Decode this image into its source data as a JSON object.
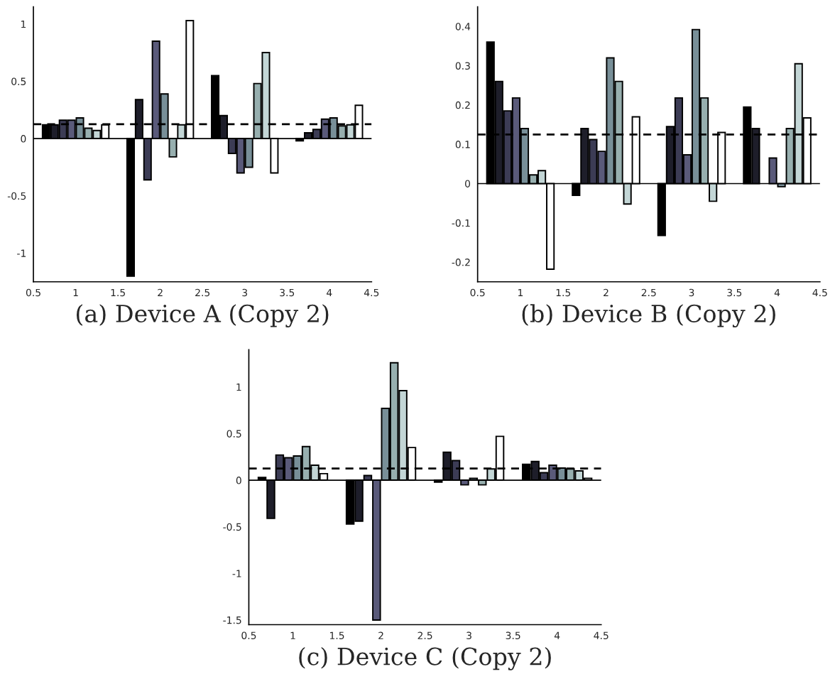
{
  "chart_data": [
    {
      "type": "bar",
      "xlabel": "(a) Device A (Copy 2)",
      "xlim": [
        0.5,
        4.5
      ],
      "xticks": [
        0.5,
        1,
        1.5,
        2,
        2.5,
        3,
        3.5,
        4,
        4.5
      ],
      "ylim": [
        -1.25,
        1.15
      ],
      "yticks": [
        -1,
        -0.5,
        0,
        0.5,
        1
      ],
      "grid": false,
      "legend": false,
      "ref_lines": [
        {
          "axis": "y",
          "value": 0,
          "line_style": "solid",
          "color": "#000000"
        },
        {
          "axis": "y",
          "value": 0.125,
          "line_style": "dashed",
          "color": "#000000"
        }
      ],
      "series": [
        {
          "color": "#000000",
          "x": [
            0.65,
            1.65,
            2.65,
            3.65
          ],
          "values": [
            0.12,
            -1.2,
            0.55,
            -0.02
          ]
        },
        {
          "color": "#1e1e2a",
          "x": [
            0.75,
            1.75,
            2.75,
            3.75
          ],
          "values": [
            0.12,
            0.34,
            0.2,
            0.05
          ]
        },
        {
          "color": "#3c3c55",
          "x": [
            0.85,
            1.85,
            2.85,
            3.85
          ],
          "values": [
            0.16,
            -0.36,
            -0.13,
            0.08
          ]
        },
        {
          "color": "#5a5a7a",
          "x": [
            0.95,
            1.95,
            2.95,
            3.95
          ],
          "values": [
            0.16,
            0.85,
            -0.3,
            0.17
          ]
        },
        {
          "color": "#788f98",
          "x": [
            1.05,
            2.05,
            3.05,
            4.05
          ],
          "values": [
            0.18,
            0.39,
            -0.25,
            0.18
          ]
        },
        {
          "color": "#97afaf",
          "x": [
            1.15,
            2.15,
            3.15,
            4.15
          ],
          "values": [
            0.09,
            -0.16,
            0.48,
            0.11
          ]
        },
        {
          "color": "#c3d6d6",
          "x": [
            1.25,
            2.25,
            3.25,
            4.25
          ],
          "values": [
            0.07,
            0.12,
            0.75,
            0.12
          ]
        },
        {
          "color": "#ffffff",
          "x": [
            1.35,
            2.35,
            3.35,
            4.35
          ],
          "values": [
            0.12,
            1.03,
            -0.3,
            0.29
          ]
        }
      ]
    },
    {
      "type": "bar",
      "xlabel": "(b) Device B (Copy 2)",
      "xlim": [
        0.5,
        4.5
      ],
      "xticks": [
        0.5,
        1,
        1.5,
        2,
        2.5,
        3,
        3.5,
        4,
        4.5
      ],
      "ylim": [
        -0.25,
        0.45
      ],
      "yticks": [
        -0.2,
        -0.1,
        0,
        0.1,
        0.2,
        0.3,
        0.4
      ],
      "grid": false,
      "legend": false,
      "ref_lines": [
        {
          "axis": "y",
          "value": 0,
          "line_style": "solid",
          "color": "#000000"
        },
        {
          "axis": "y",
          "value": 0.125,
          "line_style": "dashed",
          "color": "#000000"
        }
      ],
      "series": [
        {
          "color": "#000000",
          "x": [
            0.65,
            1.65,
            2.65,
            3.65
          ],
          "values": [
            0.36,
            -0.03,
            -0.132,
            0.195
          ]
        },
        {
          "color": "#1e1e2a",
          "x": [
            0.75,
            1.75,
            2.75,
            3.75
          ],
          "values": [
            0.26,
            0.14,
            0.145,
            0.14
          ]
        },
        {
          "color": "#3c3c55",
          "x": [
            0.85,
            1.85,
            2.85
          ],
          "values": [
            0.185,
            0.112,
            0.218
          ]
        },
        {
          "color": "#5a5a7a",
          "x": [
            0.95,
            1.95,
            2.95,
            3.95
          ],
          "values": [
            0.218,
            0.082,
            0.073,
            0.065
          ]
        },
        {
          "color": "#788f98",
          "x": [
            1.05,
            2.05,
            3.05,
            4.05
          ],
          "values": [
            0.14,
            0.32,
            0.392,
            -0.008
          ]
        },
        {
          "color": "#97afaf",
          "x": [
            1.15,
            2.15,
            3.15,
            4.15
          ],
          "values": [
            0.022,
            0.26,
            0.218,
            0.14
          ]
        },
        {
          "color": "#c3d6d6",
          "x": [
            1.25,
            2.25,
            3.25,
            4.25
          ],
          "values": [
            0.033,
            -0.052,
            -0.045,
            0.305
          ]
        },
        {
          "color": "#ffffff",
          "x": [
            1.35,
            2.35,
            3.35,
            4.35
          ],
          "values": [
            -0.218,
            0.17,
            0.13,
            0.167
          ]
        }
      ]
    },
    {
      "type": "bar",
      "xlabel": "(c) Device C (Copy 2)",
      "xlim": [
        0.5,
        4.5
      ],
      "xticks": [
        0.5,
        1,
        1.5,
        2,
        2.5,
        3,
        3.5,
        4,
        4.5
      ],
      "ylim": [
        -1.55,
        1.4
      ],
      "yticks": [
        -1.5,
        -1,
        -0.5,
        0,
        0.5,
        1
      ],
      "grid": false,
      "legend": false,
      "ref_lines": [
        {
          "axis": "y",
          "value": 0,
          "line_style": "solid",
          "color": "#000000"
        },
        {
          "axis": "y",
          "value": 0.125,
          "line_style": "dashed",
          "color": "#000000"
        }
      ],
      "series": [
        {
          "color": "#000000",
          "x": [
            0.65,
            1.65,
            2.65,
            3.65
          ],
          "values": [
            0.03,
            -0.47,
            -0.02,
            0.17
          ]
        },
        {
          "color": "#1e1e2a",
          "x": [
            0.75,
            1.75,
            2.75,
            3.75
          ],
          "values": [
            -0.41,
            -0.44,
            0.3,
            0.2
          ]
        },
        {
          "color": "#3c3c55",
          "x": [
            0.85,
            1.85,
            2.85,
            3.85
          ],
          "values": [
            0.27,
            0.05,
            0.21,
            0.08
          ]
        },
        {
          "color": "#5a5a7a",
          "x": [
            0.95,
            1.95,
            2.95,
            3.95
          ],
          "values": [
            0.24,
            -1.5,
            -0.05,
            0.16
          ]
        },
        {
          "color": "#788f98",
          "x": [
            1.05,
            2.05,
            3.05,
            4.05
          ],
          "values": [
            0.26,
            0.77,
            0.02,
            0.13
          ]
        },
        {
          "color": "#97afaf",
          "x": [
            1.15,
            2.15,
            3.15,
            4.15
          ],
          "values": [
            0.36,
            1.26,
            -0.05,
            0.12
          ]
        },
        {
          "color": "#c3d6d6",
          "x": [
            1.25,
            2.25,
            3.25,
            4.25
          ],
          "values": [
            0.16,
            0.96,
            0.12,
            0.1
          ]
        },
        {
          "color": "#ffffff",
          "x": [
            1.35,
            2.35,
            3.35,
            4.35
          ],
          "values": [
            0.07,
            0.35,
            0.47,
            0.02
          ]
        }
      ]
    }
  ]
}
